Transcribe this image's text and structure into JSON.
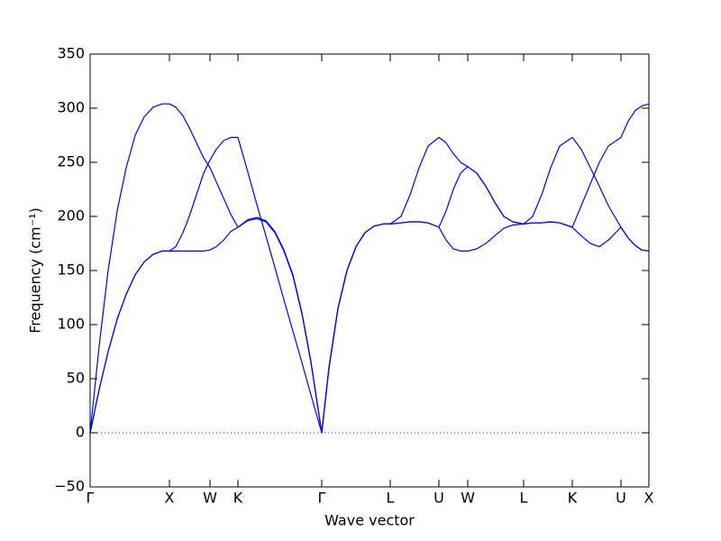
{
  "chart_data": {
    "type": "line",
    "xlabel": "Wave vector",
    "ylabel": "Frequency (cm⁻¹)",
    "x": [
      0,
      10,
      20,
      30,
      40,
      50,
      60,
      70,
      80,
      88,
      95,
      103,
      110,
      118,
      126,
      133,
      140,
      148,
      156,
      164,
      175,
      185,
      195,
      205,
      215,
      225,
      235,
      245,
      257,
      265,
      275,
      285,
      295,
      305,
      315,
      325,
      333,
      345,
      355,
      365,
      375,
      387,
      395,
      403,
      411,
      419,
      429,
      439,
      449,
      459,
      469,
      481,
      491,
      501,
      511,
      521,
      535,
      545,
      555,
      565,
      575,
      589,
      597,
      605,
      612,
      620
    ],
    "series": [
      {
        "color": "#0000ff",
        "values": [
          0,
          80,
          150,
          205,
          245,
          275,
          292,
          301,
          304,
          304,
          301,
          293,
          282,
          268,
          254,
          245,
          232,
          217,
          202,
          190,
          196,
          198,
          195,
          185,
          168,
          145,
          110,
          65,
          0,
          60,
          115,
          150,
          172,
          185,
          191,
          193,
          193,
          200,
          220,
          245,
          265,
          273,
          268,
          258,
          250,
          246,
          240,
          228,
          213,
          200,
          195,
          193,
          200,
          220,
          245,
          265,
          273,
          262,
          245,
          228,
          210,
          190,
          180,
          173,
          169,
          168
        ]
      },
      {
        "color": "#0000ff",
        "values": [
          0,
          40,
          75,
          105,
          128,
          146,
          158,
          165,
          168,
          168,
          172,
          185,
          200,
          220,
          240,
          252,
          262,
          270,
          273,
          273,
          241,
          211,
          182,
          153,
          123,
          94,
          65,
          35,
          0,
          60,
          115,
          150,
          172,
          185,
          191,
          193,
          193,
          194,
          195,
          195,
          194,
          190,
          205,
          225,
          240,
          246,
          240,
          228,
          213,
          200,
          195,
          193,
          194,
          194,
          195,
          194,
          190,
          210,
          230,
          250,
          265,
          273,
          288,
          298,
          302,
          304
        ]
      },
      {
        "color": "#0000ff",
        "values": [
          0,
          40,
          75,
          105,
          128,
          146,
          158,
          165,
          168,
          168,
          168,
          168,
          168,
          168,
          168,
          169,
          172,
          178,
          186,
          190,
          197,
          199,
          196,
          186,
          169,
          146,
          111,
          66,
          0,
          60,
          115,
          150,
          172,
          185,
          191,
          193,
          193,
          194,
          195,
          195,
          194,
          190,
          178,
          170,
          168,
          168,
          170,
          175,
          182,
          189,
          192,
          193,
          194,
          194,
          195,
          194,
          190,
          182,
          175,
          172,
          178,
          190,
          180,
          173,
          169,
          168
        ]
      }
    ],
    "xlim": [
      0,
      620
    ],
    "xticks": [
      {
        "value": 0,
        "label": "Γ"
      },
      {
        "value": 88,
        "label": "X"
      },
      {
        "value": 133,
        "label": "W"
      },
      {
        "value": 164,
        "label": "K"
      },
      {
        "value": 257,
        "label": "Γ"
      },
      {
        "value": 333,
        "label": "L"
      },
      {
        "value": 387,
        "label": "U"
      },
      {
        "value": 419,
        "label": "W"
      },
      {
        "value": 481,
        "label": "L"
      },
      {
        "value": 535,
        "label": "K"
      },
      {
        "value": 589,
        "label": "U"
      },
      {
        "value": 620,
        "label": "X"
      }
    ],
    "ylim": [
      -50,
      350
    ],
    "yticks": [
      {
        "value": -50,
        "label": "−50"
      },
      0,
      50,
      100,
      150,
      200,
      250,
      300,
      350
    ],
    "hlines": [
      0
    ],
    "hline_color": "#0000ff"
  }
}
